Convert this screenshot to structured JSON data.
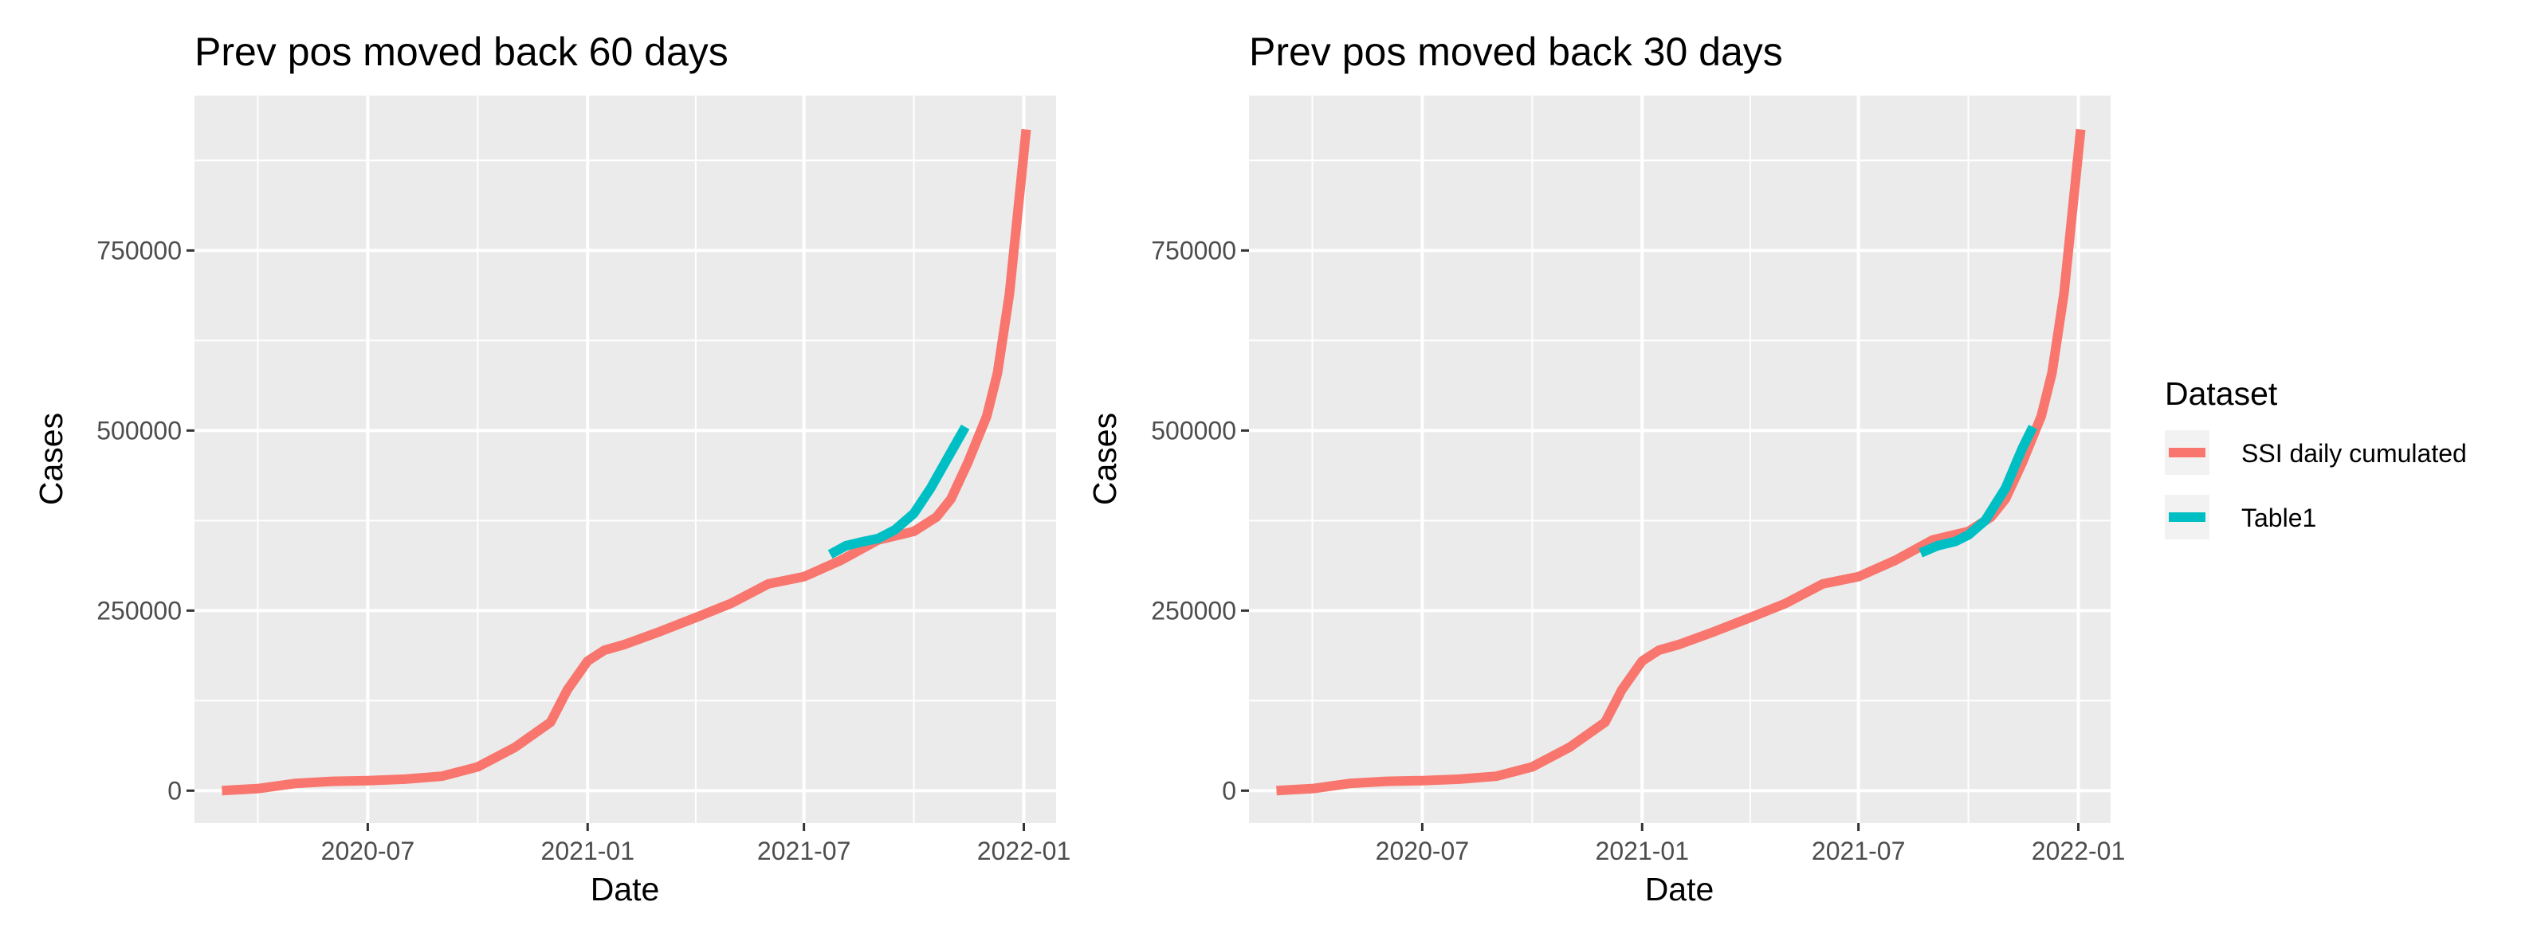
{
  "chart_data": [
    {
      "type": "line",
      "title": "Prev pos moved back 60 days",
      "xlabel": "Date",
      "ylabel": "Cases",
      "x_ticks": [
        "2020-07",
        "2021-01",
        "2021-07",
        "2022-01"
      ],
      "y_ticks": [
        0,
        250000,
        500000,
        750000
      ],
      "xlim": [
        "2020-02-07",
        "2022-01-28"
      ],
      "ylim": [
        -45000,
        965000
      ],
      "grid": true,
      "series": [
        {
          "name": "SSI daily cumulated",
          "color": "#F8766D",
          "points": [
            [
              "2020-03-01",
              0
            ],
            [
              "2020-04-01",
              3000
            ],
            [
              "2020-05-01",
              10000
            ],
            [
              "2020-06-01",
              13000
            ],
            [
              "2020-07-01",
              14000
            ],
            [
              "2020-08-01",
              16000
            ],
            [
              "2020-09-01",
              20000
            ],
            [
              "2020-10-01",
              33000
            ],
            [
              "2020-11-01",
              60000
            ],
            [
              "2020-12-01",
              95000
            ],
            [
              "2020-12-15",
              140000
            ],
            [
              "2021-01-01",
              180000
            ],
            [
              "2021-01-15",
              195000
            ],
            [
              "2021-02-01",
              203000
            ],
            [
              "2021-03-01",
              220000
            ],
            [
              "2021-04-01",
              240000
            ],
            [
              "2021-05-01",
              260000
            ],
            [
              "2021-06-01",
              287000
            ],
            [
              "2021-07-01",
              297000
            ],
            [
              "2021-08-01",
              320000
            ],
            [
              "2021-09-01",
              348000
            ],
            [
              "2021-10-01",
              360000
            ],
            [
              "2021-10-20",
              380000
            ],
            [
              "2021-11-01",
              405000
            ],
            [
              "2021-11-15",
              455000
            ],
            [
              "2021-12-01",
              520000
            ],
            [
              "2021-12-10",
              580000
            ],
            [
              "2021-12-20",
              690000
            ],
            [
              "2021-12-28",
              820000
            ],
            [
              "2022-01-03",
              918000
            ]
          ]
        },
        {
          "name": "Table1",
          "color": "#00BFC4",
          "points": [
            [
              "2021-07-23",
              328000
            ],
            [
              "2021-08-05",
              340000
            ],
            [
              "2021-08-20",
              346000
            ],
            [
              "2021-09-01",
              350000
            ],
            [
              "2021-09-15",
              362000
            ],
            [
              "2021-10-01",
              385000
            ],
            [
              "2021-10-15",
              420000
            ],
            [
              "2021-11-01",
              470000
            ],
            [
              "2021-11-13",
              505000
            ]
          ]
        }
      ]
    },
    {
      "type": "line",
      "title": "Prev pos moved back 30 days",
      "xlabel": "Date",
      "ylabel": "Cases",
      "x_ticks": [
        "2020-07",
        "2021-01",
        "2021-07",
        "2022-01"
      ],
      "y_ticks": [
        0,
        250000,
        500000,
        750000
      ],
      "xlim": [
        "2020-02-07",
        "2022-01-28"
      ],
      "ylim": [
        -45000,
        965000
      ],
      "grid": true,
      "series": [
        {
          "name": "SSI daily cumulated",
          "color": "#F8766D",
          "points": [
            [
              "2020-03-01",
              0
            ],
            [
              "2020-04-01",
              3000
            ],
            [
              "2020-05-01",
              10000
            ],
            [
              "2020-06-01",
              13000
            ],
            [
              "2020-07-01",
              14000
            ],
            [
              "2020-08-01",
              16000
            ],
            [
              "2020-09-01",
              20000
            ],
            [
              "2020-10-01",
              33000
            ],
            [
              "2020-11-01",
              60000
            ],
            [
              "2020-12-01",
              95000
            ],
            [
              "2020-12-15",
              140000
            ],
            [
              "2021-01-01",
              180000
            ],
            [
              "2021-01-15",
              195000
            ],
            [
              "2021-02-01",
              203000
            ],
            [
              "2021-03-01",
              220000
            ],
            [
              "2021-04-01",
              240000
            ],
            [
              "2021-05-01",
              260000
            ],
            [
              "2021-06-01",
              287000
            ],
            [
              "2021-07-01",
              297000
            ],
            [
              "2021-08-01",
              320000
            ],
            [
              "2021-09-01",
              348000
            ],
            [
              "2021-10-01",
              360000
            ],
            [
              "2021-10-20",
              380000
            ],
            [
              "2021-11-01",
              405000
            ],
            [
              "2021-11-15",
              455000
            ],
            [
              "2021-12-01",
              520000
            ],
            [
              "2021-12-10",
              580000
            ],
            [
              "2021-12-20",
              690000
            ],
            [
              "2021-12-28",
              820000
            ],
            [
              "2022-01-03",
              918000
            ]
          ]
        },
        {
          "name": "Table1",
          "color": "#00BFC4",
          "points": [
            [
              "2021-08-22",
              330000
            ],
            [
              "2021-09-05",
              340000
            ],
            [
              "2021-09-20",
              346000
            ],
            [
              "2021-10-01",
              355000
            ],
            [
              "2021-10-15",
              375000
            ],
            [
              "2021-11-01",
              420000
            ],
            [
              "2021-11-15",
              475000
            ],
            [
              "2021-11-24",
              505000
            ]
          ]
        }
      ]
    }
  ],
  "legend": {
    "title": "Dataset",
    "items": [
      {
        "label": "SSI daily cumulated",
        "color": "#F8766D"
      },
      {
        "label": "Table1",
        "color": "#00BFC4"
      }
    ]
  }
}
